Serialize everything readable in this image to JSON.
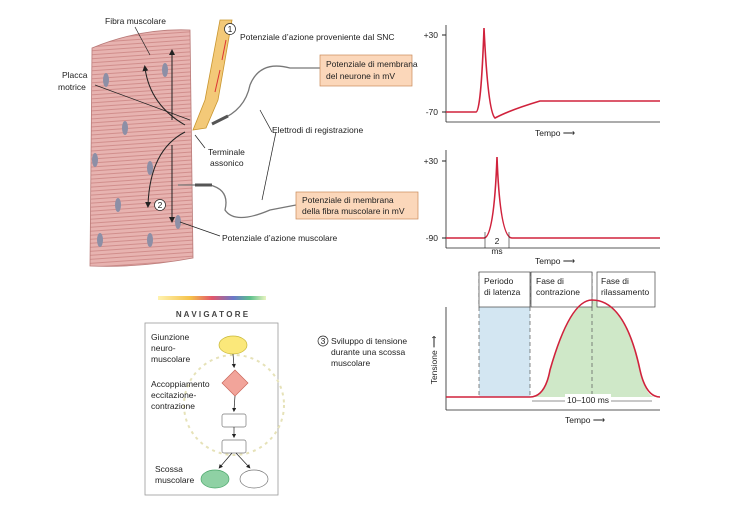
{
  "figure": {
    "fiber": "Fibra muscolare",
    "step1": "1",
    "cns_ap": "Potenziale d’azione proveniente dal SNC",
    "endplate": [
      "Placca",
      "motrice"
    ],
    "neuron_box": [
      "Potenziale di membrana",
      "del neurone in mV"
    ],
    "electrodes": "Elettrodi di registrazione",
    "terminal": [
      "Terminale",
      "assonico"
    ],
    "fiber_box": [
      "Potenziale di membrana",
      "della fibra muscolare in mV"
    ],
    "step2": "2",
    "muscle_ap": "Potenziale d’azione muscolare"
  },
  "graphs": {
    "neuron": {
      "ytick_top": "+30",
      "ytick_bottom": "-70",
      "xlabel": "Tempo ⟶"
    },
    "fiber": {
      "ytick_top": "+30",
      "ytick_bottom": "-90",
      "duration": [
        "2",
        "ms"
      ],
      "xlabel": "Tempo ⟶"
    },
    "tension": {
      "phases": [
        [
          "Periodo",
          "di latenza"
        ],
        [
          "Fase di",
          "contrazione"
        ],
        [
          "Fase di",
          "rilassamento"
        ]
      ],
      "step3": "3",
      "caption": [
        "Sviluppo di tensione",
        "durante una scossa",
        "muscolare"
      ],
      "ylabel": "Tensione ⟶",
      "duration": "10–100 ms",
      "xlabel": "Tempo ⟶"
    }
  },
  "navigator": {
    "title": "N A V I G A T O R E",
    "nodes": [
      [
        "Giunzione",
        "neuro-",
        "muscolare"
      ],
      [
        "Accoppiamento",
        "eccitazione-",
        "contrazione"
      ],
      [
        "Scossa",
        "muscolare"
      ]
    ]
  }
}
